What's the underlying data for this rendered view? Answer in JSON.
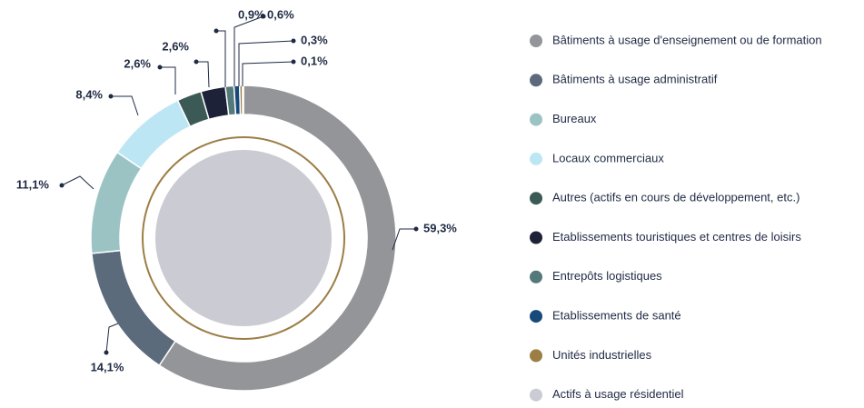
{
  "chart_data": {
    "type": "donut",
    "categories": [
      "Bâtiments à usage d'enseignement ou de formation",
      "Bâtiments à usage administratif",
      "Bureaux",
      "Locaux commerciaux",
      "Autres (actifs en cours de développement, etc.)",
      "Etablissements touristiques et centres de loisirs",
      "Entrepôts logistiques",
      "Etablissements de santé",
      "Unités industrielles",
      "Actifs à usage résidentiel"
    ],
    "values": [
      59.3,
      14.1,
      11.1,
      8.4,
      2.6,
      2.6,
      0.9,
      0.6,
      0.3,
      0.1
    ],
    "value_labels": [
      "59,3%",
      "14,1%",
      "11,1%",
      "8,4%",
      "2,6%",
      "2,6%",
      "0,9%",
      "0,6%",
      "0,3%",
      "0,1%"
    ],
    "colors": [
      "#939598",
      "#5b6b7c",
      "#9cc3c3",
      "#bde6f5",
      "#3c5a55",
      "#1e2238",
      "#54797a",
      "#174a7a",
      "#9c7e45",
      "#cbcbd3"
    ],
    "legend": "right"
  }
}
